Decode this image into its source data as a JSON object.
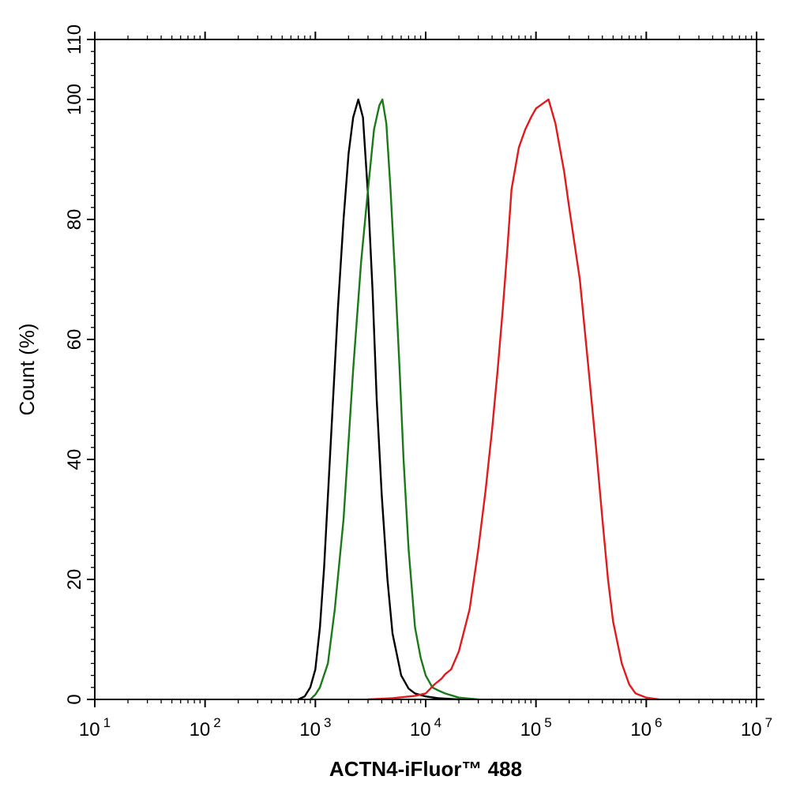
{
  "chart_data": {
    "type": "line",
    "title": "",
    "xlabel": "ACTN4-iFluor™ 488",
    "ylabel": "Count  (%)",
    "x_scale": "log",
    "xlim": [
      10,
      10000000
    ],
    "ylim": [
      0,
      110
    ],
    "x_ticks": [
      {
        "base": "10",
        "exp": "1",
        "value": 10
      },
      {
        "base": "10",
        "exp": "2",
        "value": 100
      },
      {
        "base": "10",
        "exp": "3",
        "value": 1000
      },
      {
        "base": "10",
        "exp": "4",
        "value": 10000
      },
      {
        "base": "10",
        "exp": "5",
        "value": 100000
      },
      {
        "base": "10",
        "exp": "6",
        "value": 1000000
      },
      {
        "base": "10",
        "exp": "7",
        "value": 10000000
      }
    ],
    "y_ticks": [
      {
        "label": "0",
        "value": 0
      },
      {
        "label": "20",
        "value": 20
      },
      {
        "label": "40",
        "value": 40
      },
      {
        "label": "60",
        "value": 60
      },
      {
        "label": "80",
        "value": 80
      },
      {
        "label": "100",
        "value": 100
      },
      {
        "label": "110",
        "value": 110
      }
    ],
    "grid": false,
    "legend": "none",
    "series": [
      {
        "color": "#000000",
        "points": [
          [
            700,
            0
          ],
          [
            800,
            0.5
          ],
          [
            900,
            2
          ],
          [
            1000,
            5
          ],
          [
            1100,
            12
          ],
          [
            1200,
            22
          ],
          [
            1400,
            45
          ],
          [
            1600,
            65
          ],
          [
            1800,
            80
          ],
          [
            2000,
            91
          ],
          [
            2200,
            97
          ],
          [
            2450,
            100
          ],
          [
            2700,
            97
          ],
          [
            3000,
            84
          ],
          [
            3300,
            68
          ],
          [
            3600,
            50
          ],
          [
            4000,
            34
          ],
          [
            4500,
            20
          ],
          [
            5000,
            11
          ],
          [
            6000,
            4
          ],
          [
            7000,
            1.8
          ],
          [
            8000,
            1
          ],
          [
            10000,
            0.5
          ],
          [
            13000,
            0.2
          ],
          [
            20000,
            0
          ]
        ]
      },
      {
        "color": "#1a7a1a",
        "points": [
          [
            900,
            0
          ],
          [
            1000,
            0.8
          ],
          [
            1100,
            2
          ],
          [
            1300,
            6
          ],
          [
            1500,
            15
          ],
          [
            1800,
            30
          ],
          [
            2200,
            55
          ],
          [
            2600,
            73
          ],
          [
            3000,
            85
          ],
          [
            3400,
            95
          ],
          [
            3800,
            99
          ],
          [
            4050,
            100
          ],
          [
            4400,
            96
          ],
          [
            4800,
            85
          ],
          [
            5300,
            70
          ],
          [
            5800,
            55
          ],
          [
            6300,
            40
          ],
          [
            7000,
            25
          ],
          [
            8000,
            12
          ],
          [
            9000,
            7
          ],
          [
            10000,
            4
          ],
          [
            11500,
            2
          ],
          [
            13000,
            1.5
          ],
          [
            15000,
            1
          ],
          [
            20000,
            0.3
          ],
          [
            30000,
            0
          ]
        ]
      },
      {
        "color": "#e31a1c",
        "points": [
          [
            3000,
            0
          ],
          [
            5000,
            0.2
          ],
          [
            8000,
            0.6
          ],
          [
            10000,
            1
          ],
          [
            12000,
            2.5
          ],
          [
            14000,
            3.5
          ],
          [
            15000,
            4.2
          ],
          [
            17000,
            5
          ],
          [
            20000,
            8
          ],
          [
            25000,
            15
          ],
          [
            30000,
            25
          ],
          [
            35000,
            35
          ],
          [
            40000,
            45
          ],
          [
            45000,
            55
          ],
          [
            50000,
            65
          ],
          [
            55000,
            75
          ],
          [
            60000,
            85
          ],
          [
            70000,
            92
          ],
          [
            80000,
            95
          ],
          [
            90000,
            97
          ],
          [
            100000,
            98.5
          ],
          [
            115000,
            99.3
          ],
          [
            130000,
            100
          ],
          [
            150000,
            96
          ],
          [
            180000,
            88
          ],
          [
            200000,
            82
          ],
          [
            250000,
            70
          ],
          [
            300000,
            55
          ],
          [
            350000,
            42
          ],
          [
            400000,
            30
          ],
          [
            450000,
            20
          ],
          [
            500000,
            13
          ],
          [
            600000,
            6
          ],
          [
            700000,
            2.5
          ],
          [
            800000,
            1
          ],
          [
            1000000,
            0.3
          ],
          [
            1300000,
            0
          ]
        ]
      }
    ]
  }
}
